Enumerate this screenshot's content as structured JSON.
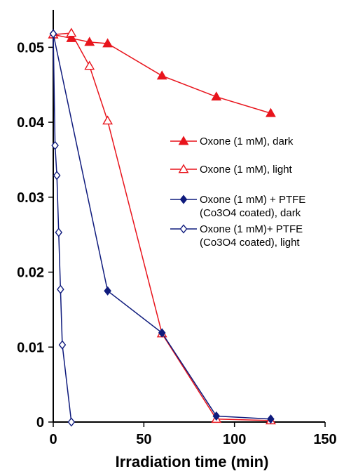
{
  "chart_data": {
    "type": "line",
    "title": "",
    "xlabel": "Irradiation time (min)",
    "ylabel": "",
    "xlim": [
      0,
      150
    ],
    "ylim": [
      0,
      0.055
    ],
    "x_ticks": [
      "0",
      "50",
      "100",
      "150"
    ],
    "x_tick_values": [
      0,
      50,
      100,
      150
    ],
    "y_ticks": [
      "0",
      "0.01",
      "0.02",
      "0.03",
      "0.04",
      "0.05"
    ],
    "y_tick_values": [
      0,
      0.01,
      0.02,
      0.03,
      0.04,
      0.05
    ],
    "grid": false,
    "legend_position": "right",
    "series": [
      {
        "name_lines": [
          "Oxone (1 mM), dark"
        ],
        "color": "#e8141c",
        "marker": "triangle-filled",
        "points": [
          [
            0,
            0.0517
          ],
          [
            10,
            0.0512
          ],
          [
            20,
            0.0507
          ],
          [
            30,
            0.0505
          ],
          [
            60,
            0.0462
          ],
          [
            90,
            0.0434
          ],
          [
            120,
            0.0412
          ]
        ]
      },
      {
        "name_lines": [
          "Oxone (1 mM), light"
        ],
        "color": "#e8141c",
        "marker": "triangle-open",
        "points": [
          [
            0,
            0.0517
          ],
          [
            10,
            0.0519
          ],
          [
            20,
            0.0475
          ],
          [
            30,
            0.0402
          ],
          [
            60,
            0.0118
          ],
          [
            90,
            0.0004
          ],
          [
            120,
            0.0002
          ]
        ]
      },
      {
        "name_lines": [
          "Oxone (1 mM) + PTFE",
          "(Co3O4 coated), dark"
        ],
        "color": "#0f1b7d",
        "marker": "diamond-filled",
        "points": [
          [
            0,
            0.0518
          ],
          [
            30,
            0.0175
          ],
          [
            60,
            0.0119
          ],
          [
            90,
            0.0008
          ],
          [
            120,
            0.0004
          ]
        ]
      },
      {
        "name_lines": [
          "Oxone (1 mM)+ PTFE",
          "(Co3O4 coated), light"
        ],
        "color": "#0f1b7d",
        "marker": "diamond-open",
        "points": [
          [
            0,
            0.0518
          ],
          [
            1,
            0.0369
          ],
          [
            2,
            0.0329
          ],
          [
            3,
            0.0253
          ],
          [
            4,
            0.0177
          ],
          [
            5,
            0.0103
          ],
          [
            10,
            0.0
          ]
        ]
      }
    ]
  }
}
